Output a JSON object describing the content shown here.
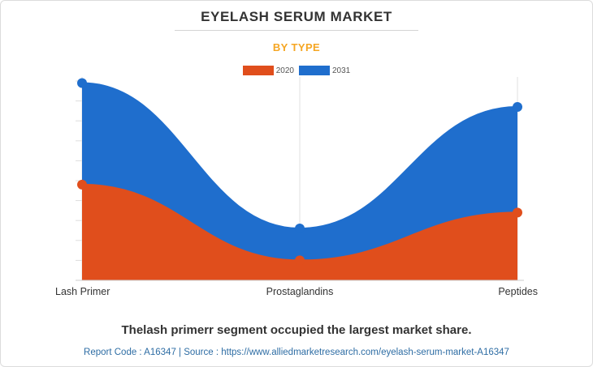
{
  "header": {
    "title": "EYELASH SERUM MARKET",
    "subtitle": "BY TYPE"
  },
  "chart_data": {
    "type": "area",
    "categories": [
      "Lash Primer",
      "Prostaglandins",
      "Peptides"
    ],
    "series": [
      {
        "name": "2020",
        "values": [
          4.8,
          1.0,
          3.4
        ],
        "color": "#e04e1c"
      },
      {
        "name": "2031",
        "values": [
          9.9,
          2.6,
          8.7
        ],
        "color": "#1f6ecd"
      }
    ],
    "ylim": [
      0,
      10
    ],
    "grid": true,
    "legend": "top-center",
    "title": "EYELASH SERUM MARKET",
    "subtitle": "BY TYPE",
    "xlabel": "",
    "ylabel": ""
  },
  "footer": {
    "note": "Thelash primerr segment occupied the largest market share.",
    "source": "Report Code : A16347  |  Source : https://www.alliedmarketresearch.com/eyelash-serum-market-A16347"
  }
}
